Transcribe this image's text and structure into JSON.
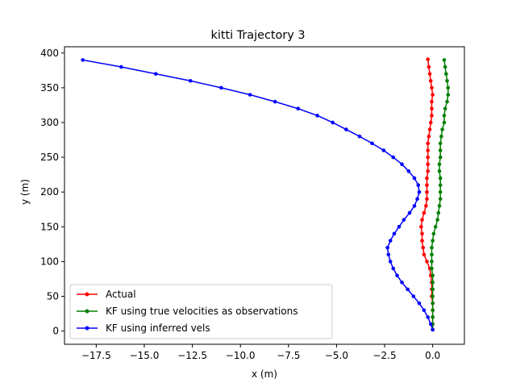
{
  "chart_data": {
    "type": "line",
    "title": "kitti Trajectory 3",
    "xlabel": "x (m)",
    "ylabel": "y (m)",
    "xlim": [
      -19.15,
      1.65
    ],
    "ylim": [
      -19,
      409
    ],
    "x_ticks": [
      -17.5,
      -15.0,
      -12.5,
      -10.0,
      -7.5,
      -5.0,
      -2.5,
      0.0
    ],
    "x_tick_labels": [
      "−17.5",
      "−15.0",
      "−12.5",
      "−10.0",
      "−7.5",
      "−5.0",
      "−2.5",
      "0.0"
    ],
    "y_ticks": [
      0,
      50,
      100,
      150,
      200,
      250,
      300,
      350,
      400
    ],
    "y_tick_labels": [
      "0",
      "50",
      "100",
      "150",
      "200",
      "250",
      "300",
      "350",
      "400"
    ],
    "grid": false,
    "legend_position": "lower-left",
    "series": [
      {
        "name": "Actual",
        "color": "#ff0000",
        "marker": "dot",
        "points": [
          [
            0.0,
            2
          ],
          [
            0.0,
            10
          ],
          [
            0.0,
            20
          ],
          [
            0.0,
            30
          ],
          [
            0.0,
            40
          ],
          [
            -0.05,
            50
          ],
          [
            -0.05,
            60
          ],
          [
            -0.05,
            70
          ],
          [
            -0.1,
            80
          ],
          [
            -0.15,
            90
          ],
          [
            -0.3,
            100
          ],
          [
            -0.45,
            110
          ],
          [
            -0.5,
            120
          ],
          [
            -0.55,
            130
          ],
          [
            -0.55,
            140
          ],
          [
            -0.6,
            150
          ],
          [
            -0.55,
            160
          ],
          [
            -0.45,
            170
          ],
          [
            -0.35,
            180
          ],
          [
            -0.3,
            190
          ],
          [
            -0.3,
            200
          ],
          [
            -0.3,
            210
          ],
          [
            -0.3,
            220
          ],
          [
            -0.25,
            230
          ],
          [
            -0.25,
            240
          ],
          [
            -0.25,
            250
          ],
          [
            -0.25,
            260
          ],
          [
            -0.25,
            270
          ],
          [
            -0.2,
            280
          ],
          [
            -0.15,
            290
          ],
          [
            -0.1,
            300
          ],
          [
            -0.05,
            310
          ],
          [
            -0.05,
            320
          ],
          [
            -0.05,
            330
          ],
          [
            0.0,
            340
          ],
          [
            -0.05,
            350
          ],
          [
            -0.1,
            360
          ],
          [
            -0.15,
            370
          ],
          [
            -0.2,
            380
          ],
          [
            -0.25,
            391
          ]
        ]
      },
      {
        "name": "KF using true velocities as observations",
        "color": "#008000",
        "marker": "dot",
        "points": [
          [
            0.0,
            2
          ],
          [
            0.0,
            10
          ],
          [
            0.0,
            20
          ],
          [
            0.0,
            30
          ],
          [
            0.0,
            40
          ],
          [
            0.0,
            50
          ],
          [
            0.0,
            60
          ],
          [
            0.0,
            70
          ],
          [
            0.0,
            80
          ],
          [
            -0.05,
            90
          ],
          [
            -0.05,
            100
          ],
          [
            -0.05,
            110
          ],
          [
            -0.05,
            120
          ],
          [
            0.0,
            130
          ],
          [
            0.05,
            140
          ],
          [
            0.15,
            150
          ],
          [
            0.25,
            160
          ],
          [
            0.3,
            170
          ],
          [
            0.35,
            180
          ],
          [
            0.4,
            190
          ],
          [
            0.4,
            200
          ],
          [
            0.4,
            210
          ],
          [
            0.4,
            220
          ],
          [
            0.35,
            230
          ],
          [
            0.35,
            240
          ],
          [
            0.4,
            250
          ],
          [
            0.4,
            260
          ],
          [
            0.4,
            270
          ],
          [
            0.45,
            280
          ],
          [
            0.5,
            290
          ],
          [
            0.6,
            300
          ],
          [
            0.6,
            310
          ],
          [
            0.65,
            320
          ],
          [
            0.75,
            330
          ],
          [
            0.8,
            340
          ],
          [
            0.8,
            350
          ],
          [
            0.75,
            360
          ],
          [
            0.7,
            370
          ],
          [
            0.65,
            380
          ],
          [
            0.6,
            390
          ]
        ]
      },
      {
        "name": "KF using inferred vels",
        "color": "#0000ff",
        "marker": "dot",
        "points": [
          [
            0.0,
            2
          ],
          [
            -0.1,
            10
          ],
          [
            -0.25,
            20
          ],
          [
            -0.45,
            30
          ],
          [
            -0.7,
            40
          ],
          [
            -1.0,
            50
          ],
          [
            -1.3,
            60
          ],
          [
            -1.6,
            70
          ],
          [
            -1.85,
            80
          ],
          [
            -2.05,
            90
          ],
          [
            -2.2,
            100
          ],
          [
            -2.3,
            110
          ],
          [
            -2.35,
            120
          ],
          [
            -2.2,
            130
          ],
          [
            -2.0,
            140
          ],
          [
            -1.75,
            150
          ],
          [
            -1.5,
            160
          ],
          [
            -1.2,
            170
          ],
          [
            -0.95,
            180
          ],
          [
            -0.8,
            190
          ],
          [
            -0.7,
            200
          ],
          [
            -0.75,
            210
          ],
          [
            -0.95,
            220
          ],
          [
            -1.25,
            230
          ],
          [
            -1.6,
            240
          ],
          [
            -2.05,
            250
          ],
          [
            -2.55,
            260
          ],
          [
            -3.15,
            270
          ],
          [
            -3.8,
            280
          ],
          [
            -4.5,
            290
          ],
          [
            -5.2,
            300
          ],
          [
            -6.0,
            310
          ],
          [
            -7.0,
            320
          ],
          [
            -8.2,
            330
          ],
          [
            -9.5,
            340
          ],
          [
            -11.0,
            350
          ],
          [
            -12.6,
            360
          ],
          [
            -14.4,
            370
          ],
          [
            -16.2,
            380
          ],
          [
            -18.2,
            390
          ]
        ]
      }
    ]
  }
}
